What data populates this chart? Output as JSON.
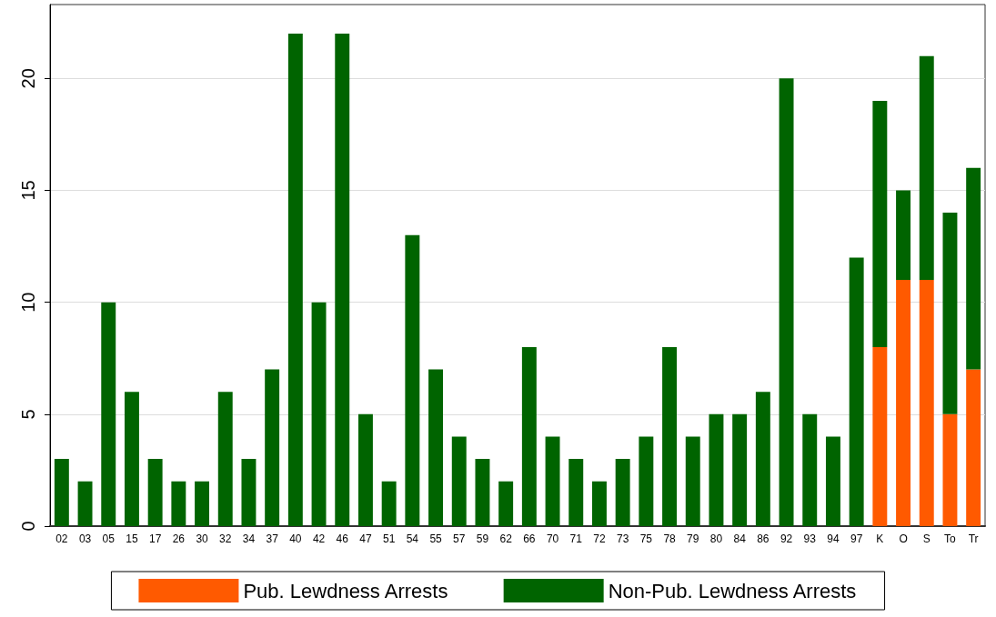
{
  "chart_data": {
    "type": "bar",
    "stacked": true,
    "categories": [
      "02",
      "03",
      "05",
      "15",
      "17",
      "26",
      "30",
      "32",
      "34",
      "37",
      "40",
      "42",
      "46",
      "47",
      "51",
      "54",
      "55",
      "57",
      "59",
      "62",
      "66",
      "70",
      "71",
      "72",
      "73",
      "75",
      "78",
      "79",
      "80",
      "84",
      "86",
      "92",
      "93",
      "94",
      "97",
      "K",
      "O",
      "S",
      "To",
      "Tr"
    ],
    "series": [
      {
        "name": "Pub. Lewdness Arrests",
        "color": "#ff5a00",
        "values": [
          null,
          null,
          null,
          null,
          null,
          null,
          null,
          null,
          null,
          null,
          null,
          null,
          null,
          null,
          null,
          null,
          null,
          null,
          null,
          null,
          null,
          null,
          null,
          null,
          null,
          null,
          null,
          null,
          null,
          null,
          null,
          null,
          null,
          null,
          null,
          8,
          11,
          11,
          5,
          7
        ]
      },
      {
        "name": "Non-Pub. Lewdness Arrests",
        "color": "#006400",
        "values": [
          3,
          2,
          10,
          6,
          3,
          2,
          2,
          6,
          3,
          7,
          22,
          10,
          22,
          5,
          2,
          13,
          7,
          4,
          3,
          2,
          8,
          4,
          3,
          2,
          3,
          4,
          8,
          4,
          5,
          5,
          6,
          20,
          5,
          4,
          12,
          11,
          4,
          10,
          9,
          9
        ]
      }
    ],
    "ylim": [
      0,
      23.3
    ],
    "yticks": [
      0,
      5,
      10,
      15,
      20
    ],
    "grid": "y",
    "legend": "bottom"
  }
}
